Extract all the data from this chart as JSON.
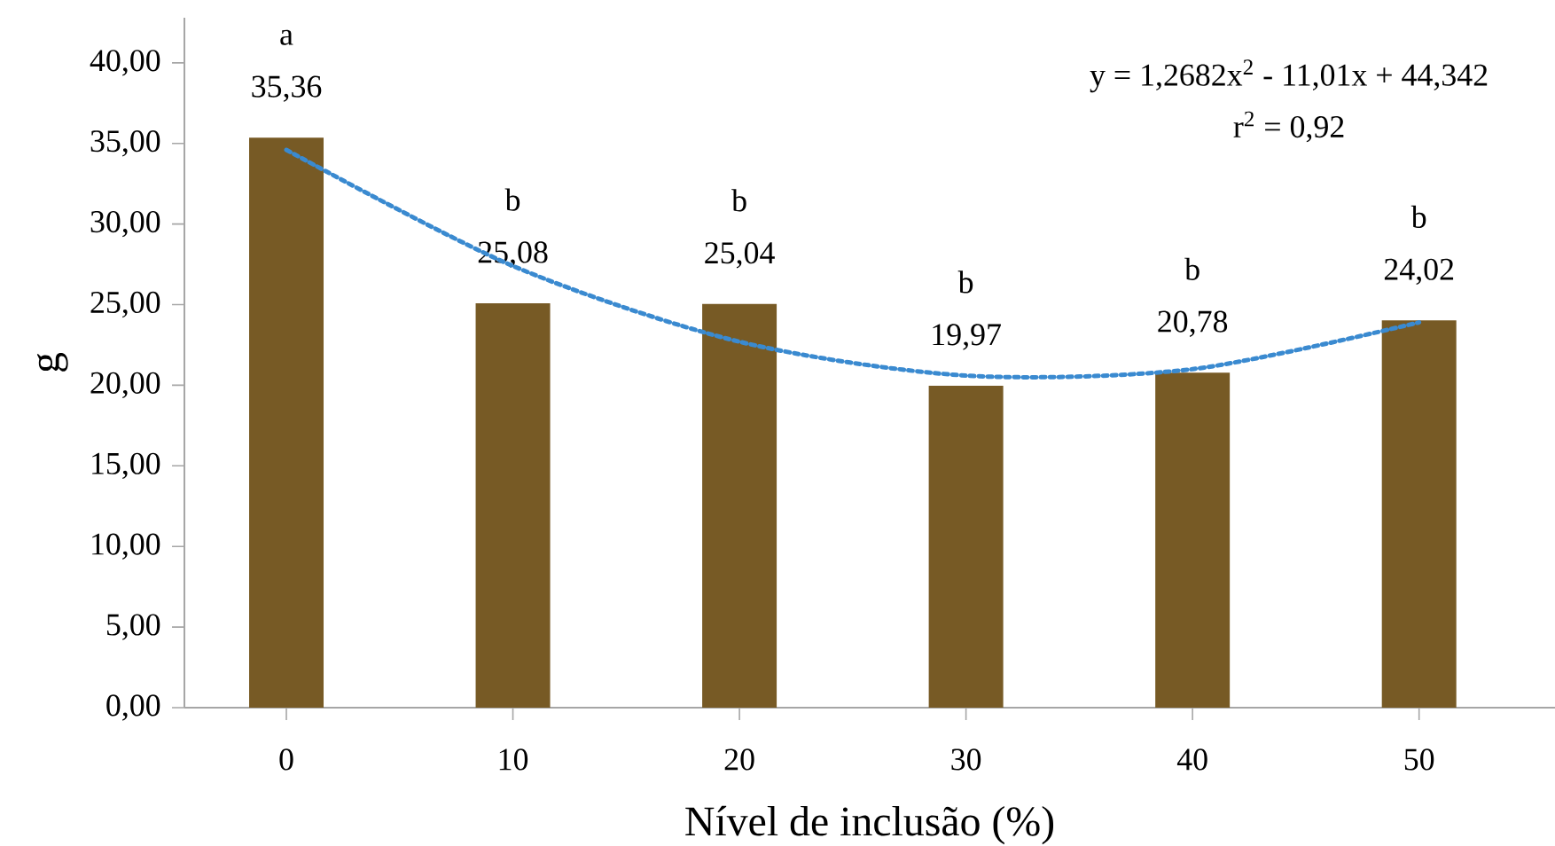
{
  "chart_data": {
    "type": "bar",
    "xlabel": "Nível de inclusão (%)",
    "ylabel": "g",
    "categories": [
      "0",
      "10",
      "20",
      "30",
      "40",
      "50"
    ],
    "series": [
      {
        "color": "#775a25",
        "values": [
          35.36,
          25.08,
          25.04,
          19.97,
          20.78,
          24.02
        ],
        "value_labels": [
          "35,36",
          "25,08",
          "25,04",
          "19,97",
          "20,78",
          "24,02"
        ]
      },
      {
        "type": "line",
        "color": "#3a8ad0",
        "line_style": "dotted",
        "x": [
          "0",
          "10",
          "20",
          "30",
          "40",
          "50"
        ],
        "values": [
          34.6,
          27.4,
          22.7,
          20.6,
          21.0,
          23.9
        ]
      }
    ],
    "ylim": [
      0,
      42.8
    ],
    "yticks": [
      {
        "value": 0,
        "label": "0,00"
      },
      {
        "value": 5,
        "label": "5,00"
      },
      {
        "value": 10,
        "label": "10,00"
      },
      {
        "value": 15,
        "label": "15,00"
      },
      {
        "value": 20,
        "label": "20,00"
      },
      {
        "value": 25,
        "label": "25,00"
      },
      {
        "value": 30,
        "label": "30,00"
      },
      {
        "value": 35,
        "label": "35,00"
      },
      {
        "value": 40,
        "label": "40,00"
      }
    ],
    "annotations": [
      {
        "text": "a",
        "x": "0",
        "y": 35.36
      },
      {
        "text": "b",
        "x": "10",
        "y": 25.08
      },
      {
        "text": "b",
        "x": "20",
        "y": 25.04
      },
      {
        "text": "b",
        "x": "30",
        "y": 19.97
      },
      {
        "text": "b",
        "x": "40",
        "y": 20.78
      },
      {
        "text": "b",
        "x": "50",
        "y": 24.02
      },
      "y = 1,2682x$^{2}$ - 11,01x + 44,342",
      "r$^{2}$ = 0,92"
    ],
    "grid": false
  }
}
